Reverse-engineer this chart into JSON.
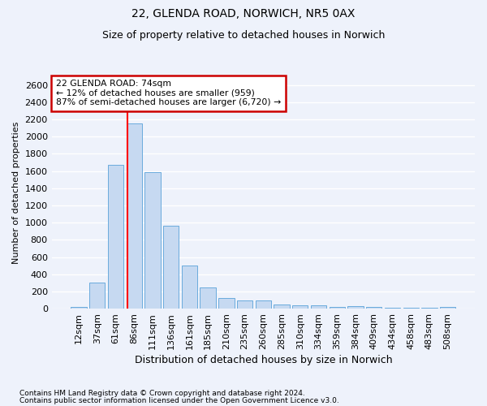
{
  "title1": "22, GLENDA ROAD, NORWICH, NR5 0AX",
  "title2": "Size of property relative to detached houses in Norwich",
  "xlabel": "Distribution of detached houses by size in Norwich",
  "ylabel": "Number of detached properties",
  "footnote1": "Contains HM Land Registry data © Crown copyright and database right 2024.",
  "footnote2": "Contains public sector information licensed under the Open Government Licence v3.0.",
  "categories": [
    "12sqm",
    "37sqm",
    "61sqm",
    "86sqm",
    "111sqm",
    "136sqm",
    "161sqm",
    "185sqm",
    "210sqm",
    "235sqm",
    "260sqm",
    "285sqm",
    "310sqm",
    "334sqm",
    "359sqm",
    "384sqm",
    "409sqm",
    "434sqm",
    "458sqm",
    "483sqm",
    "508sqm"
  ],
  "values": [
    25,
    300,
    1675,
    2150,
    1590,
    960,
    500,
    250,
    120,
    100,
    100,
    50,
    40,
    35,
    20,
    30,
    20,
    10,
    10,
    10,
    25
  ],
  "bar_color": "#c6d9f1",
  "bar_edge_color": "#6aabdd",
  "background_color": "#eef2fb",
  "grid_color": "#ffffff",
  "red_line_x": 2.62,
  "annotation_text_line1": "22 GLENDA ROAD: 74sqm",
  "annotation_text_line2": "← 12% of detached houses are smaller (959)",
  "annotation_text_line3": "87% of semi-detached houses are larger (6,720) →",
  "annotation_box_color": "#ffffff",
  "annotation_box_edge_color": "#cc0000",
  "ylim": [
    0,
    2700
  ],
  "yticks": [
    0,
    200,
    400,
    600,
    800,
    1000,
    1200,
    1400,
    1600,
    1800,
    2000,
    2200,
    2400,
    2600
  ],
  "title1_fontsize": 10,
  "title2_fontsize": 9,
  "xlabel_fontsize": 9,
  "ylabel_fontsize": 8,
  "tick_fontsize": 8,
  "footnote_fontsize": 6.5
}
